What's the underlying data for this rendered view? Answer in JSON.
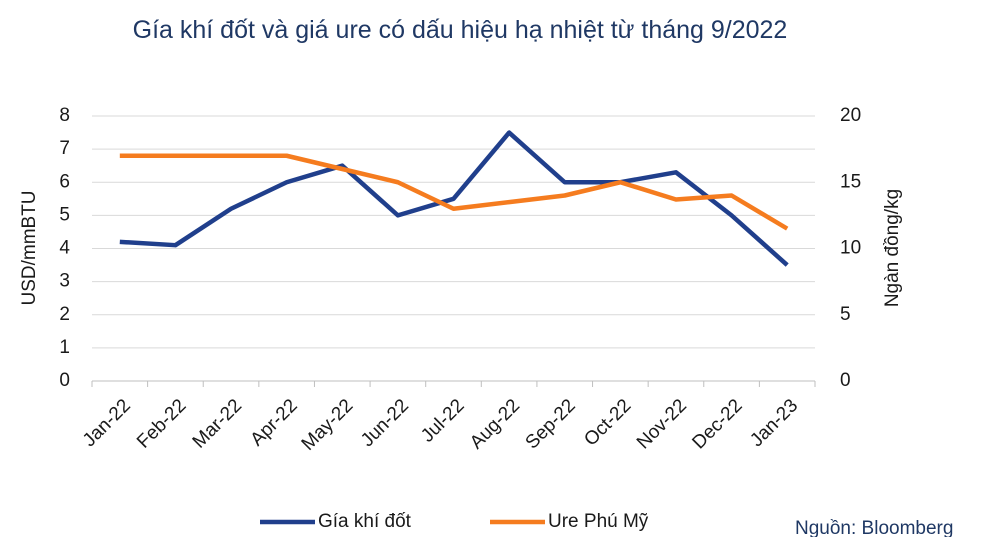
{
  "chart_data": {
    "type": "line",
    "title": "Gía khí đốt và giá ure có dấu hiệu hạ nhiệt từ tháng 9/2022",
    "categories": [
      "Jan-22",
      "Feb-22",
      "Mar-22",
      "Apr-22",
      "May-22",
      "Jun-22",
      "Jul-22",
      "Aug-22",
      "Sep-22",
      "Oct-22",
      "Nov-22",
      "Dec-22",
      "Jan-23"
    ],
    "series": [
      {
        "name": "Gía khí đốt",
        "color": "#203f8c",
        "axis": "y",
        "values": [
          4.2,
          4.1,
          5.2,
          6.0,
          6.5,
          5.0,
          5.5,
          7.5,
          6.0,
          6.0,
          6.3,
          5.0,
          3.5
        ]
      },
      {
        "name": "Ure Phú Mỹ",
        "color": "#f57c1f",
        "axis": "y2",
        "values": [
          17,
          17,
          17,
          17,
          16,
          15,
          13,
          13.5,
          14,
          15,
          13.7,
          14,
          11.5
        ]
      }
    ],
    "y_label": "USD/mmBTU",
    "y2_label": "Ngàn đồng/kg",
    "ylim": [
      0,
      8
    ],
    "yticks": [
      0,
      1,
      2,
      3,
      4,
      5,
      6,
      7,
      8
    ],
    "y2lim": [
      0,
      20
    ],
    "y2ticks": [
      0,
      5,
      10,
      15,
      20
    ],
    "grid": true,
    "legend": "bottom",
    "source": "Nguồn: Bloomberg"
  }
}
